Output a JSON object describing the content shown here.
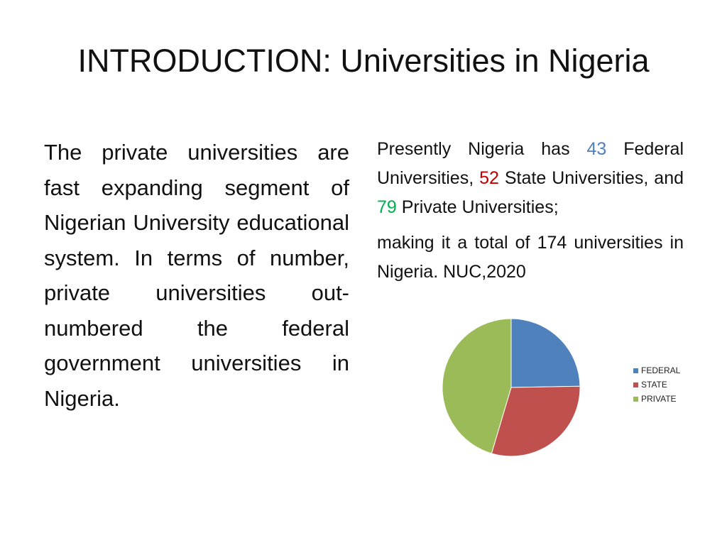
{
  "slide": {
    "title": "INTRODUCTION: Universities in Nigeria",
    "left_paragraph": "The private universities are fast expanding segment of Nigerian University educational system. In terms of number, private universities out-numbered the federal government universities in Nigeria.",
    "right": {
      "p1_start": "Presently Nigeria has ",
      "federal_count": "43",
      "p1_mid1": " Federal Universities, ",
      "state_count": "52",
      "p1_mid2": " State Universities, and ",
      "private_count": "79",
      "p1_end": " Private Universities;",
      "p2": "making it a total of 174 universities in Nigeria. NUC,2020"
    }
  },
  "chart_data": {
    "type": "pie",
    "categories": [
      "FEDERAL",
      "STATE",
      "PRIVATE"
    ],
    "values": [
      43,
      52,
      79
    ],
    "colors": [
      "#4f81bd",
      "#c0504d",
      "#9bbb59"
    ],
    "legend_position": "right"
  }
}
